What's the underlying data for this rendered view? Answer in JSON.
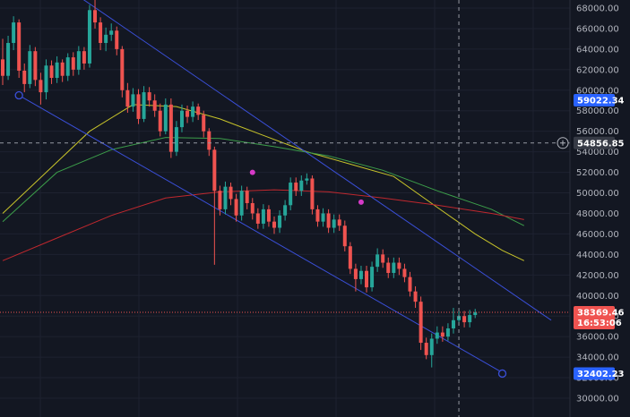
{
  "chart_data": {
    "type": "candlestick",
    "y_axis": {
      "ticks": [
        "68000.00",
        "66000.00",
        "64000.00",
        "62000.00",
        "60000.00",
        "58000.00",
        "56000.00",
        "54000.00",
        "52000.00",
        "50000.00",
        "48000.00",
        "46000.00",
        "44000.00",
        "42000.00",
        "40000.00",
        "38000.00",
        "36000.00",
        "34000.00",
        "32000.00",
        "30000.00"
      ],
      "tick_values": [
        68000,
        66000,
        64000,
        62000,
        60000,
        58000,
        56000,
        54000,
        52000,
        50000,
        48000,
        46000,
        44000,
        42000,
        40000,
        38000,
        36000,
        34000,
        32000,
        30000
      ],
      "range": [
        29000,
        69000
      ]
    },
    "badges": {
      "top_line_price": "59022.34",
      "crosshair_price": "54856.85",
      "last_price": "38369.46",
      "countdown": "16:53:06",
      "bottom_line_price": "32402.23"
    },
    "candles": [
      [
        63000,
        61400,
        65000,
        60500
      ],
      [
        61400,
        64600,
        65300,
        61000
      ],
      [
        64600,
        66600,
        67200,
        63900
      ],
      [
        66600,
        61900,
        66900,
        61200
      ],
      [
        61900,
        60600,
        62600,
        59800
      ],
      [
        60600,
        63800,
        64400,
        60200
      ],
      [
        63800,
        61000,
        64200,
        60400
      ],
      [
        61000,
        59800,
        61700,
        58600
      ],
      [
        59800,
        62400,
        63000,
        59100
      ],
      [
        62400,
        61200,
        62900,
        60600
      ],
      [
        61200,
        62700,
        63300,
        60700
      ],
      [
        62700,
        61400,
        63000,
        60800
      ],
      [
        61400,
        63200,
        63600,
        60900
      ],
      [
        63200,
        62000,
        63700,
        61400
      ],
      [
        62000,
        63800,
        64300,
        61500
      ],
      [
        63800,
        62600,
        64200,
        62000
      ],
      [
        62600,
        67800,
        68300,
        62200
      ],
      [
        67800,
        66600,
        68900,
        66000
      ],
      [
        66600,
        64600,
        67100,
        63900
      ],
      [
        64600,
        65400,
        66100,
        63800
      ],
      [
        65400,
        65800,
        66500,
        64800
      ],
      [
        65800,
        64000,
        66200,
        63400
      ],
      [
        64000,
        60000,
        64300,
        59300
      ],
      [
        60000,
        58400,
        60700,
        57800
      ],
      [
        58400,
        59600,
        60200,
        57900
      ],
      [
        59600,
        57200,
        60100,
        56700
      ],
      [
        57200,
        59800,
        60400,
        56900
      ],
      [
        59800,
        59000,
        60300,
        58400
      ],
      [
        59000,
        58000,
        59600,
        57400
      ],
      [
        58000,
        56000,
        58700,
        55500
      ],
      [
        56000,
        58600,
        59200,
        55700
      ],
      [
        58600,
        54000,
        59200,
        53400
      ],
      [
        54000,
        56400,
        57000,
        53600
      ],
      [
        56400,
        58000,
        58600,
        55900
      ],
      [
        58000,
        57400,
        58500,
        56800
      ],
      [
        57400,
        58400,
        58900,
        56900
      ],
      [
        58400,
        57600,
        58700,
        57100
      ],
      [
        57600,
        56000,
        58000,
        55400
      ],
      [
        56000,
        54200,
        56300,
        53600
      ],
      [
        54200,
        50200,
        54500,
        43000
      ],
      [
        50200,
        48400,
        50700,
        47800
      ],
      [
        48400,
        50600,
        51100,
        47900
      ],
      [
        50600,
        49400,
        51000,
        48800
      ],
      [
        49400,
        47800,
        49900,
        47200
      ],
      [
        47800,
        50200,
        50700,
        47300
      ],
      [
        50200,
        49000,
        50600,
        48400
      ],
      [
        49000,
        48000,
        49500,
        47400
      ],
      [
        48000,
        47000,
        48500,
        46500
      ],
      [
        47000,
        48400,
        48900,
        46500
      ],
      [
        48400,
        47200,
        48800,
        46700
      ],
      [
        47200,
        46600,
        47700,
        46000
      ],
      [
        46600,
        47800,
        48300,
        46100
      ],
      [
        47800,
        48800,
        49300,
        47300
      ],
      [
        48800,
        51000,
        51500,
        48300
      ],
      [
        51000,
        50200,
        51500,
        49700
      ],
      [
        50200,
        51200,
        51700,
        49700
      ],
      [
        51200,
        51400,
        51900,
        50800
      ],
      [
        51400,
        48400,
        51700,
        47900
      ],
      [
        48400,
        47200,
        48800,
        46700
      ],
      [
        47200,
        48000,
        48500,
        46700
      ],
      [
        48000,
        46600,
        48400,
        46100
      ],
      [
        46600,
        47400,
        47900,
        46100
      ],
      [
        47400,
        46800,
        47900,
        46300
      ],
      [
        46800,
        44800,
        47300,
        44300
      ],
      [
        44800,
        42600,
        45200,
        42100
      ],
      [
        42600,
        41600,
        43100,
        40400
      ],
      [
        41600,
        42400,
        42900,
        41100
      ],
      [
        42400,
        40800,
        42900,
        40300
      ],
      [
        40800,
        42800,
        43300,
        40400
      ],
      [
        42800,
        44000,
        44600,
        42300
      ],
      [
        44000,
        43200,
        44500,
        42700
      ],
      [
        43200,
        42200,
        43700,
        41700
      ],
      [
        42200,
        43200,
        43700,
        41700
      ],
      [
        43200,
        42600,
        43700,
        42000
      ],
      [
        42600,
        41800,
        43100,
        41300
      ],
      [
        41800,
        40400,
        42300,
        39900
      ],
      [
        40400,
        39400,
        40900,
        38800
      ],
      [
        39400,
        35400,
        39900,
        34700
      ],
      [
        35400,
        34200,
        35900,
        33800
      ],
      [
        34200,
        35800,
        36300,
        33000
      ],
      [
        35800,
        36400,
        37000,
        35300
      ],
      [
        36400,
        36000,
        37000,
        35500
      ],
      [
        36000,
        36800,
        37300,
        35600
      ],
      [
        36800,
        37600,
        38800,
        36300
      ],
      [
        37600,
        38000,
        38500,
        37100
      ],
      [
        38000,
        37400,
        38500,
        36900
      ],
      [
        37400,
        38100,
        38600,
        36900
      ],
      [
        38100,
        38369,
        38700,
        37800
      ]
    ],
    "ma_series": [
      {
        "color": "#c8c42a",
        "values": [
          [
            0,
            48000
          ],
          [
            8,
            52000
          ],
          [
            16,
            56000
          ],
          [
            24,
            58600
          ],
          [
            32,
            58400
          ],
          [
            40,
            57200
          ],
          [
            48,
            55600
          ],
          [
            56,
            54000
          ],
          [
            64,
            52800
          ],
          [
            72,
            51600
          ],
          [
            80,
            48600
          ],
          [
            87,
            46000
          ],
          [
            92,
            44400
          ],
          [
            96,
            43400
          ]
        ]
      },
      {
        "color": "#3c9e4a",
        "values": [
          [
            0,
            47200
          ],
          [
            10,
            52000
          ],
          [
            20,
            54200
          ],
          [
            30,
            55400
          ],
          [
            40,
            55300
          ],
          [
            50,
            54500
          ],
          [
            60,
            53600
          ],
          [
            70,
            52200
          ],
          [
            80,
            50200
          ],
          [
            90,
            48400
          ],
          [
            96,
            46800
          ]
        ]
      },
      {
        "color": "#c0282e",
        "values": [
          [
            0,
            43400
          ],
          [
            10,
            45600
          ],
          [
            20,
            47800
          ],
          [
            30,
            49500
          ],
          [
            40,
            50100
          ],
          [
            50,
            50300
          ],
          [
            60,
            50100
          ],
          [
            70,
            49500
          ],
          [
            80,
            48800
          ],
          [
            90,
            48000
          ],
          [
            96,
            47400
          ]
        ]
      }
    ],
    "channel": {
      "color": "#3a4fd8",
      "upper": [
        [
          13,
          69500
        ],
        [
          101,
          37600
        ]
      ],
      "lower": [
        [
          3,
          59500
        ],
        [
          92,
          32500
        ]
      ],
      "lower_anchor": [
        3,
        59500
      ],
      "upper_anchor": [
        92,
        32402
      ]
    },
    "markers": [
      {
        "color": "#d63ac8",
        "at": [
          46,
          52000
        ]
      },
      {
        "color": "#d63ac8",
        "at": [
          66,
          49100
        ]
      }
    ],
    "crosshair": {
      "x_index": 84,
      "price": 54856.85
    },
    "last_price_line": 38369.46
  }
}
